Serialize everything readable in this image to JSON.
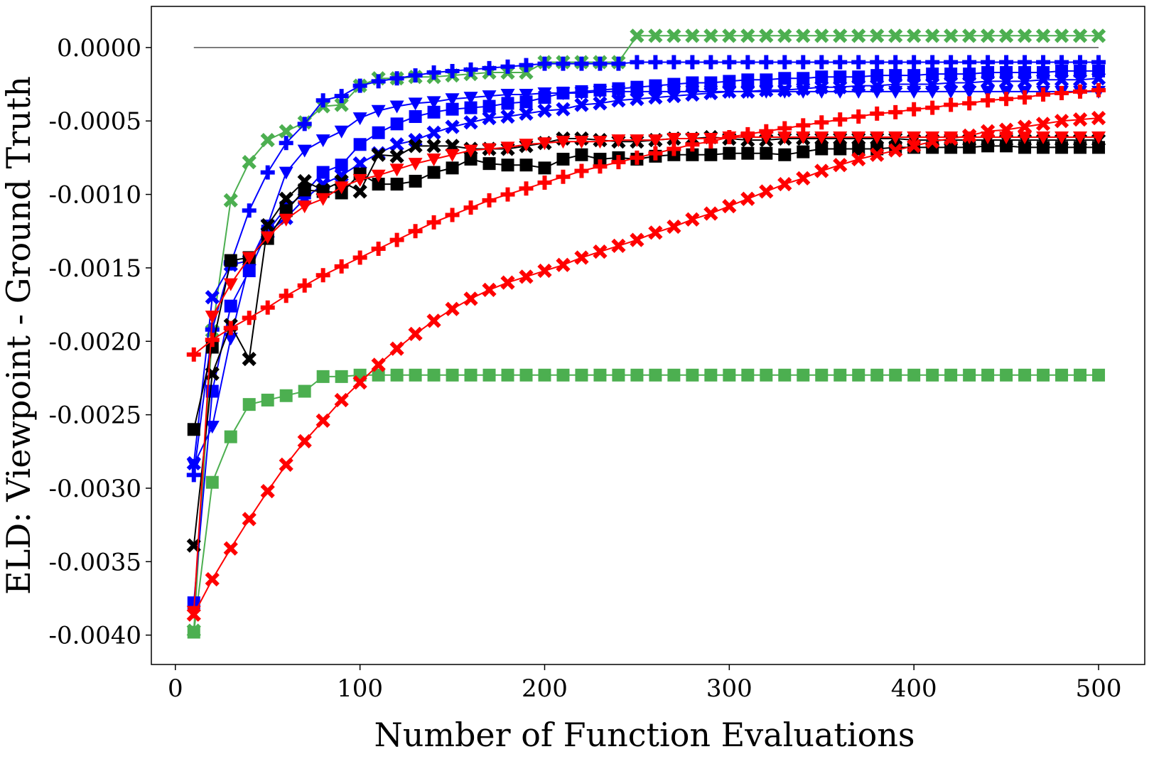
{
  "chart_data": {
    "type": "line",
    "title": "",
    "xlabel": "Number of Function Evaluations",
    "ylabel": "ELD: Viewpoint - Ground Truth",
    "xlim": [
      -13,
      525
    ],
    "ylim": [
      -0.0042,
      0.00028
    ],
    "xticks": [
      0,
      100,
      200,
      300,
      400,
      500
    ],
    "xtick_labels": [
      "0",
      "100",
      "200",
      "300",
      "400",
      "500"
    ],
    "yticks": [
      0.0,
      -0.0005,
      -0.001,
      -0.0015,
      -0.002,
      -0.0025,
      -0.003,
      -0.0035,
      -0.004
    ],
    "ytick_labels": [
      "0.0000",
      "-0.0005",
      "-0.0010",
      "-0.0015",
      "-0.0020",
      "-0.0025",
      "-0.0030",
      "-0.0035",
      "-0.0040"
    ],
    "grid": false,
    "legend": "none",
    "x": [
      10,
      20,
      30,
      40,
      50,
      60,
      70,
      80,
      90,
      100,
      110,
      120,
      130,
      140,
      150,
      160,
      170,
      180,
      190,
      200,
      210,
      220,
      230,
      240,
      250,
      260,
      270,
      280,
      290,
      300,
      310,
      320,
      330,
      340,
      350,
      360,
      370,
      380,
      390,
      400,
      410,
      420,
      430,
      440,
      450,
      460,
      470,
      480,
      490,
      500
    ],
    "reference_line": {
      "x": [
        10,
        500
      ],
      "y": 0.0,
      "color": "#555555"
    },
    "series": [
      {
        "color": "#4CAF50",
        "marker": "x",
        "values": [
          -0.00397,
          -0.00193,
          -0.00104,
          -0.00078,
          -0.00063,
          -0.00057,
          -0.00051,
          -0.0004,
          -0.00039,
          -0.00026,
          -0.00021,
          -0.00021,
          -0.0002,
          -0.0002,
          -0.00019,
          -0.00018,
          -0.00017,
          -0.00017,
          -0.00017,
          -0.0001,
          -0.0001,
          -0.0001,
          -0.0001,
          -0.0001,
          8e-05,
          8e-05,
          8e-05,
          8e-05,
          8e-05,
          8e-05,
          8e-05,
          8e-05,
          8e-05,
          8e-05,
          8e-05,
          8e-05,
          8e-05,
          8e-05,
          8e-05,
          8e-05,
          8e-05,
          8e-05,
          8e-05,
          8e-05,
          8e-05,
          8e-05,
          8e-05,
          8e-05,
          8e-05,
          8e-05
        ]
      },
      {
        "color": "#4CAF50",
        "marker": "square",
        "values": [
          -0.00398,
          -0.00296,
          -0.00265,
          -0.00243,
          -0.0024,
          -0.00237,
          -0.00234,
          -0.00224,
          -0.00224,
          -0.00223,
          -0.00223,
          -0.00223,
          -0.00223,
          -0.00223,
          -0.00223,
          -0.00223,
          -0.00223,
          -0.00223,
          -0.00223,
          -0.00223,
          -0.00223,
          -0.00223,
          -0.00223,
          -0.00223,
          -0.00223,
          -0.00223,
          -0.00223,
          -0.00223,
          -0.00223,
          -0.00223,
          -0.00223,
          -0.00223,
          -0.00223,
          -0.00223,
          -0.00223,
          -0.00223,
          -0.00223,
          -0.00223,
          -0.00223,
          -0.00223,
          -0.00223,
          -0.00223,
          -0.00223,
          -0.00223,
          -0.00223,
          -0.00223,
          -0.00223,
          -0.00223,
          -0.00223,
          -0.00223
        ]
      },
      {
        "color": "#0000FF",
        "marker": "plus",
        "values": [
          -0.00291,
          -0.00192,
          -0.00147,
          -0.00111,
          -0.00085,
          -0.00065,
          -0.00052,
          -0.00036,
          -0.00033,
          -0.00026,
          -0.00023,
          -0.00021,
          -0.00019,
          -0.00017,
          -0.00016,
          -0.00015,
          -0.00014,
          -0.00013,
          -0.00012,
          -0.00011,
          -0.00011,
          -0.00011,
          -0.00011,
          -0.00011,
          -0.0001,
          -0.0001,
          -0.0001,
          -0.0001,
          -0.0001,
          -0.0001,
          -0.0001,
          -0.0001,
          -0.0001,
          -0.0001,
          -0.0001,
          -0.0001,
          -0.0001,
          -0.0001,
          -0.0001,
          -0.0001,
          -0.0001,
          -0.0001,
          -0.0001,
          -0.0001,
          -0.0001,
          -0.0001,
          -0.0001,
          -0.0001,
          -0.0001,
          -0.0001
        ]
      },
      {
        "color": "#0000FF",
        "marker": "triangle-down",
        "values": [
          -0.00284,
          -0.00258,
          -0.00198,
          -0.00147,
          -0.00121,
          -0.00085,
          -0.0007,
          -0.00063,
          -0.00057,
          -0.00048,
          -0.00043,
          -0.0004,
          -0.00038,
          -0.00037,
          -0.00035,
          -0.00034,
          -0.00033,
          -0.00032,
          -0.00032,
          -0.00031,
          -0.00031,
          -0.00031,
          -0.0003,
          -0.0003,
          -0.0003,
          -0.0003,
          -0.0003,
          -0.0003,
          -0.0003,
          -0.0003,
          -0.0003,
          -0.0003,
          -0.0003,
          -0.0003,
          -0.0003,
          -0.0003,
          -0.0003,
          -0.0003,
          -0.0003,
          -0.0003,
          -0.0003,
          -0.0003,
          -0.0003,
          -0.0003,
          -0.0003,
          -0.0003,
          -0.0003,
          -0.0003,
          -0.0003,
          -0.0003
        ]
      },
      {
        "color": "#0000FF",
        "marker": "square",
        "values": [
          -0.00378,
          -0.00234,
          -0.00176,
          -0.00152,
          -0.00125,
          -0.00109,
          -0.00099,
          -0.00085,
          -0.0008,
          -0.00066,
          -0.00058,
          -0.00052,
          -0.00047,
          -0.00044,
          -0.00042,
          -0.00041,
          -0.0004,
          -0.00038,
          -0.00037,
          -0.00034,
          -0.00031,
          -0.0003,
          -0.00029,
          -0.00028,
          -0.00027,
          -0.00026,
          -0.00025,
          -0.00024,
          -0.00024,
          -0.00023,
          -0.00022,
          -0.00022,
          -0.00021,
          -0.00021,
          -0.0002,
          -0.0002,
          -0.0002,
          -0.00019,
          -0.00019,
          -0.00019,
          -0.00018,
          -0.00018,
          -0.00018,
          -0.00017,
          -0.00017,
          -0.00017,
          -0.00017,
          -0.00016,
          -0.00016,
          -0.00016
        ]
      },
      {
        "color": "#0000FF",
        "marker": "x",
        "values": [
          -0.00283,
          -0.0017,
          -0.00148,
          -0.00145,
          -0.00126,
          -0.00116,
          -0.00103,
          -0.00093,
          -0.00087,
          -0.00079,
          -0.00072,
          -0.00066,
          -0.00063,
          -0.00058,
          -0.00054,
          -0.00051,
          -0.00048,
          -0.00047,
          -0.00045,
          -0.00043,
          -0.00042,
          -0.00039,
          -0.00038,
          -0.00036,
          -0.00035,
          -0.00034,
          -0.00033,
          -0.00032,
          -0.00031,
          -0.0003,
          -0.0003,
          -0.00029,
          -0.00029,
          -0.00028,
          -0.00027,
          -0.00027,
          -0.00026,
          -0.00026,
          -0.00025,
          -0.00025,
          -0.00025,
          -0.00024,
          -0.00024,
          -0.00023,
          -0.00023,
          -0.00023,
          -0.00022,
          -0.00022,
          -0.00022,
          -0.00021
        ]
      },
      {
        "color": "#000000",
        "marker": "x",
        "values": [
          -0.00339,
          -0.00222,
          -0.00189,
          -0.00212,
          -0.00121,
          -0.00103,
          -0.00091,
          -0.00097,
          -0.00091,
          -0.00098,
          -0.00073,
          -0.00074,
          -0.00067,
          -0.00067,
          -0.00067,
          -0.00069,
          -0.00069,
          -0.00069,
          -0.00067,
          -0.00065,
          -0.00062,
          -0.00062,
          -0.00063,
          -0.00064,
          -0.00064,
          -0.00063,
          -0.00062,
          -0.00062,
          -0.00061,
          -0.00062,
          -0.00063,
          -0.00063,
          -0.00062,
          -0.00062,
          -0.00062,
          -0.00062,
          -0.00062,
          -0.00062,
          -0.00062,
          -0.00063,
          -0.00063,
          -0.00063,
          -0.00063,
          -0.00063,
          -0.00063,
          -0.00063,
          -0.00063,
          -0.00063,
          -0.00063,
          -0.00063
        ]
      },
      {
        "color": "#000000",
        "marker": "square",
        "values": [
          -0.0026,
          -0.00204,
          -0.00145,
          -0.00143,
          -0.0013,
          -0.00111,
          -0.00097,
          -0.00098,
          -0.00099,
          -0.00086,
          -0.00093,
          -0.00093,
          -0.00091,
          -0.00085,
          -0.00082,
          -0.00076,
          -0.00079,
          -0.0008,
          -0.0008,
          -0.00082,
          -0.00076,
          -0.00073,
          -0.00076,
          -0.00075,
          -0.00076,
          -0.00074,
          -0.00073,
          -0.00073,
          -0.00073,
          -0.00072,
          -0.00072,
          -0.00072,
          -0.00073,
          -0.00071,
          -0.00069,
          -0.00069,
          -0.00069,
          -0.00069,
          -0.00068,
          -0.00068,
          -0.00068,
          -0.00068,
          -0.00068,
          -0.00067,
          -0.00067,
          -0.00068,
          -0.00068,
          -0.00068,
          -0.00068,
          -0.00068
        ]
      },
      {
        "color": "#FF0000",
        "marker": "triangle-down",
        "values": [
          -0.00384,
          -0.00183,
          -0.00161,
          -0.00143,
          -0.00129,
          -0.00117,
          -0.00108,
          -0.00103,
          -0.00095,
          -0.0009,
          -0.00087,
          -0.00083,
          -0.00079,
          -0.00076,
          -0.00073,
          -0.0007,
          -0.00069,
          -0.00068,
          -0.00066,
          -0.00065,
          -0.00064,
          -0.00064,
          -0.00064,
          -0.00063,
          -0.00063,
          -0.00063,
          -0.00062,
          -0.00062,
          -0.00062,
          -0.00061,
          -0.00061,
          -0.00061,
          -0.00061,
          -0.00061,
          -0.00061,
          -0.00061,
          -0.00061,
          -0.00061,
          -0.00061,
          -0.00061,
          -0.00061,
          -0.00061,
          -0.00061,
          -0.00061,
          -0.00061,
          -0.00061,
          -0.00061,
          -0.00061,
          -0.00061,
          -0.00061
        ]
      },
      {
        "color": "#FF0000",
        "marker": "plus",
        "values": [
          -0.00209,
          -0.00199,
          -0.00191,
          -0.00184,
          -0.00177,
          -0.00169,
          -0.00162,
          -0.00155,
          -0.00149,
          -0.00143,
          -0.00137,
          -0.00131,
          -0.00125,
          -0.00119,
          -0.00114,
          -0.00109,
          -0.00104,
          -0.001,
          -0.00096,
          -0.00092,
          -0.00088,
          -0.00084,
          -0.00081,
          -0.00078,
          -0.00075,
          -0.00072,
          -0.00069,
          -0.00066,
          -0.00064,
          -0.00061,
          -0.00059,
          -0.00057,
          -0.00055,
          -0.00053,
          -0.00051,
          -0.00049,
          -0.00047,
          -0.00045,
          -0.00044,
          -0.00042,
          -0.00041,
          -0.00039,
          -0.00038,
          -0.00036,
          -0.00035,
          -0.00034,
          -0.00032,
          -0.00031,
          -0.0003,
          -0.00029
        ]
      },
      {
        "color": "#FF0000",
        "marker": "x",
        "values": [
          -0.00386,
          -0.00362,
          -0.00341,
          -0.00321,
          -0.00302,
          -0.00284,
          -0.00268,
          -0.00254,
          -0.0024,
          -0.00228,
          -0.00216,
          -0.00205,
          -0.00195,
          -0.00186,
          -0.00178,
          -0.00171,
          -0.00165,
          -0.0016,
          -0.00156,
          -0.00152,
          -0.00148,
          -0.00143,
          -0.00139,
          -0.00135,
          -0.00131,
          -0.00126,
          -0.00122,
          -0.00117,
          -0.00113,
          -0.00108,
          -0.00103,
          -0.00098,
          -0.00093,
          -0.00089,
          -0.00084,
          -0.0008,
          -0.00076,
          -0.00073,
          -0.0007,
          -0.00067,
          -0.00064,
          -0.00062,
          -0.0006,
          -0.00057,
          -0.00056,
          -0.00054,
          -0.00052,
          -0.0005,
          -0.00049,
          -0.00048
        ]
      }
    ]
  }
}
